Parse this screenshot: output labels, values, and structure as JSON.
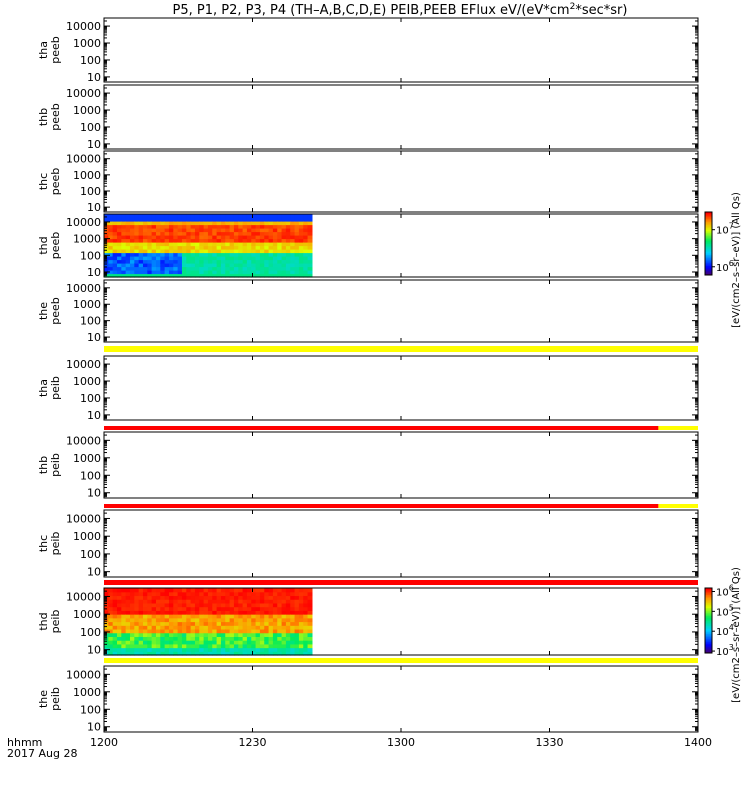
{
  "chart_data": {
    "type": "heatmap",
    "title_parts": [
      "P5, P1, P2, P3, P4 (TH–A,B,C,D,E) PEIB,PEEB EFlux eV/(eV*cm",
      "2",
      "*sec*sr)"
    ],
    "x_range": [
      "1200",
      "1400"
    ],
    "x_ticks": [
      "1200",
      "1230",
      "1300",
      "1330",
      "1400"
    ],
    "x_label": "hhmm",
    "date_label": "2017 Aug 28",
    "y_scale": "log",
    "y_ticks": [
      "10",
      "100",
      "1000",
      "10000"
    ],
    "y_range": [
      5,
      30000
    ],
    "data_end": "1242",
    "gap_at": "1215",
    "colorbar_label": "[eV/(cm2–s–sr–eV)] (All Qs)",
    "panels": [
      {
        "line1": "tha",
        "line2": "peeb",
        "has_data": false
      },
      {
        "line1": "thb",
        "line2": "peeb",
        "has_data": false
      },
      {
        "line1": "thc",
        "line2": "peeb",
        "has_data": false
      },
      {
        "line1": "thd",
        "line2": "peeb",
        "has_data": true,
        "colorbar": "peeb"
      },
      {
        "line1": "the",
        "line2": "peeb",
        "has_data": false
      },
      {
        "line1": "tha",
        "line2": "peib",
        "has_data": false
      },
      {
        "line1": "thb",
        "line2": "peib",
        "has_data": false
      },
      {
        "line1": "thc",
        "line2": "peib",
        "has_data": false
      },
      {
        "line1": "thd",
        "line2": "peib",
        "has_data": true,
        "colorbar": "peib"
      },
      {
        "line1": "the",
        "line2": "peib",
        "has_data": false
      }
    ],
    "status_bars": [
      {
        "after_panel": 4,
        "segments": [
          {
            "color": "#ffff00",
            "from": "1200",
            "to": "1400"
          }
        ]
      },
      {
        "after_panel": 5,
        "segments": [
          {
            "color": "#ff0000",
            "from": "1200",
            "to": "1352"
          },
          {
            "color": "#ffff00",
            "from": "1352",
            "to": "1400"
          }
        ]
      },
      {
        "after_panel": 6,
        "segments": [
          {
            "color": "#ff0000",
            "from": "1200",
            "to": "1352"
          },
          {
            "color": "#ffff00",
            "from": "1352",
            "to": "1400"
          }
        ]
      },
      {
        "after_panel": 7,
        "segments": [
          {
            "color": "#ff0000",
            "from": "1200",
            "to": "1400"
          }
        ]
      },
      {
        "after_panel": 8,
        "segments": [
          {
            "color": "#ffff00",
            "from": "1200",
            "to": "1400"
          }
        ]
      }
    ],
    "colorbars": {
      "peeb": {
        "ticks": [
          {
            "base": "10",
            "exp": "6"
          },
          {
            "base": "10",
            "exp": "7"
          }
        ],
        "range": [
          600000,
          30000000
        ]
      },
      "peib": {
        "ticks": [
          {
            "base": "10",
            "exp": "3"
          },
          {
            "base": "10",
            "exp": "4"
          },
          {
            "base": "10",
            "exp": "5"
          },
          {
            "base": "10",
            "exp": "6"
          }
        ],
        "range": [
          800,
          1500000
        ]
      }
    }
  }
}
